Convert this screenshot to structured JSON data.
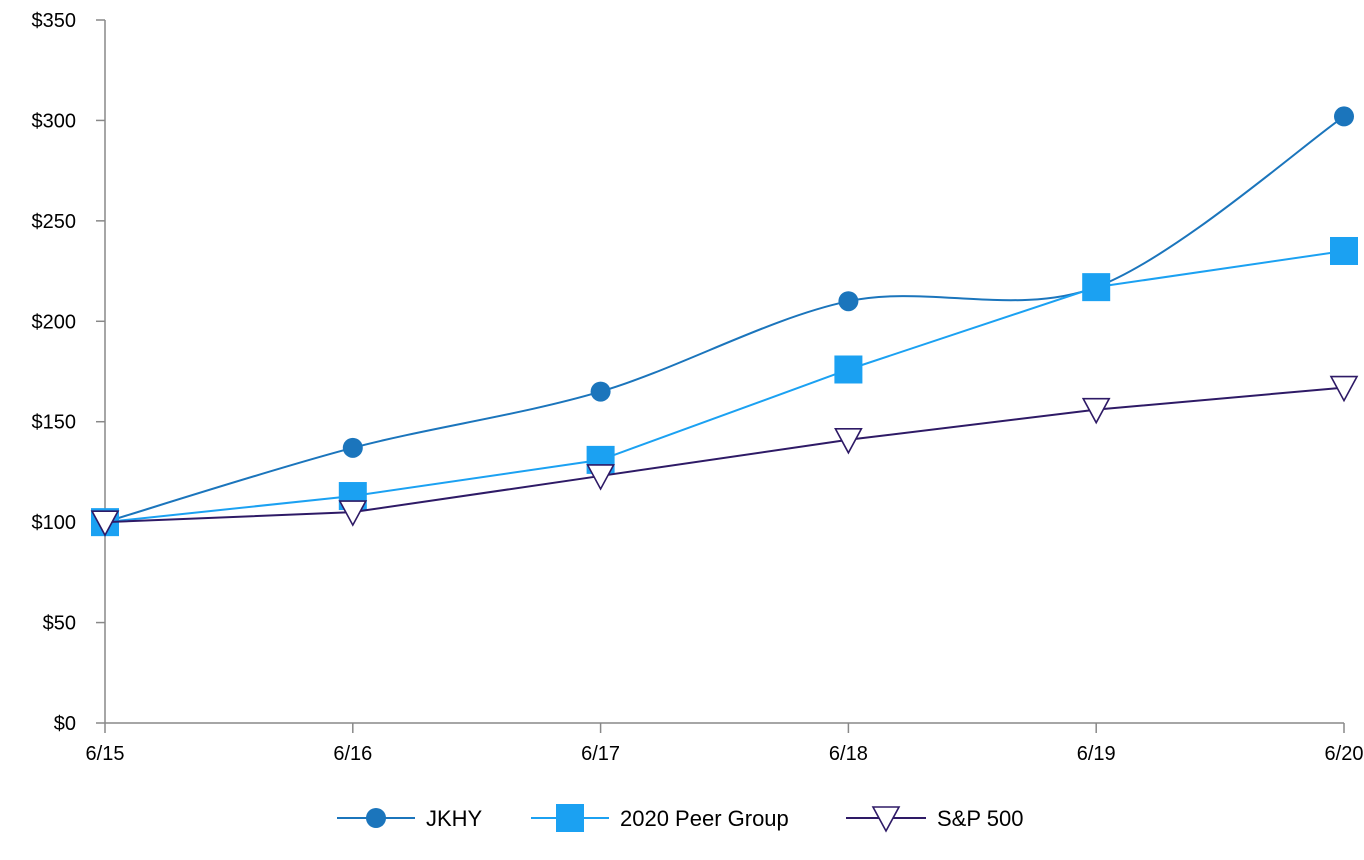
{
  "chart_data": {
    "type": "line",
    "title": "",
    "xlabel": "",
    "ylabel": "",
    "categories": [
      "6/15",
      "6/16",
      "6/17",
      "6/18",
      "6/19",
      "6/20"
    ],
    "y_ticks": [
      0,
      50,
      100,
      150,
      200,
      250,
      300,
      350
    ],
    "y_tick_labels": [
      "$0",
      "$50",
      "$100",
      "$150",
      "$200",
      "$250",
      "$300",
      "$350"
    ],
    "ylim": [
      0,
      350
    ],
    "grid": false,
    "legend_position": "bottom-center",
    "series": [
      {
        "name": "JKHY",
        "marker": "circle",
        "color": "#1B75BC",
        "smooth": true,
        "values": [
          100,
          137,
          165,
          210,
          217,
          302
        ]
      },
      {
        "name": "2020 Peer Group",
        "marker": "square",
        "color": "#1BA1F2",
        "smooth": false,
        "values": [
          100,
          113,
          131,
          176,
          217,
          235
        ]
      },
      {
        "name": "S&P 500",
        "marker": "triangle-down",
        "color": "#2E1A66",
        "smooth": false,
        "values": [
          100,
          105,
          123,
          141,
          156,
          167
        ]
      }
    ]
  }
}
